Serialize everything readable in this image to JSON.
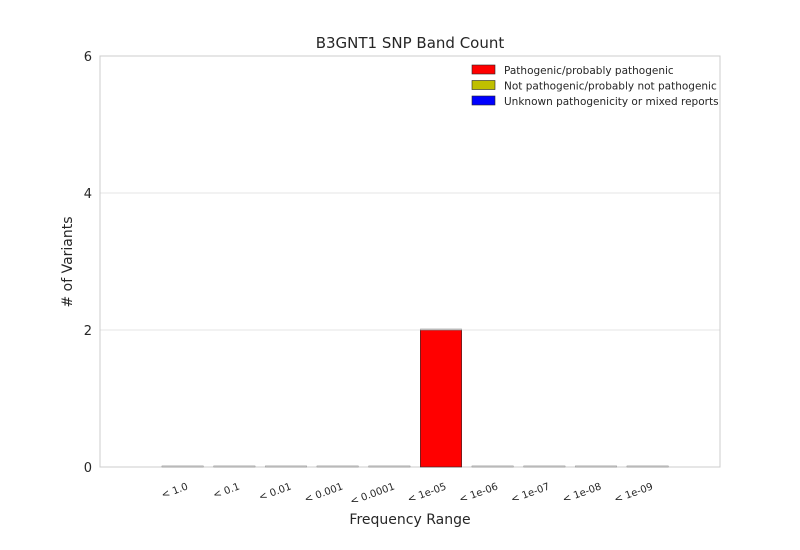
{
  "chart_data": {
    "type": "bar",
    "title": "B3GNT1 SNP Band Count",
    "xlabel": "Frequency Range",
    "ylabel": "# of Variants",
    "ylim": [
      0,
      6
    ],
    "yticks": [
      0,
      2,
      4,
      6
    ],
    "grid": true,
    "legend_position": "top-right",
    "categories": [
      "< 1.0",
      "< 0.1",
      "< 0.01",
      "< 0.001",
      "< 0.0001",
      "< 1e-05",
      "< 1e-06",
      "< 1e-07",
      "< 1e-08",
      "< 1e-09"
    ],
    "series": [
      {
        "name": "Pathogenic/probably pathogenic",
        "color": "#ff0000",
        "values": [
          0,
          0,
          0,
          0,
          0,
          2,
          0,
          0,
          0,
          0
        ]
      },
      {
        "name": "Not pathogenic/probably not pathogenic",
        "color": "#bfbf00",
        "values": [
          0,
          0,
          0,
          0,
          0,
          0,
          0,
          0,
          0,
          0
        ]
      },
      {
        "name": "Unknown pathogenicity or mixed reports",
        "color": "#0000ff",
        "values": [
          0,
          0,
          0,
          0,
          0,
          0,
          0,
          0,
          0,
          0
        ]
      }
    ]
  }
}
